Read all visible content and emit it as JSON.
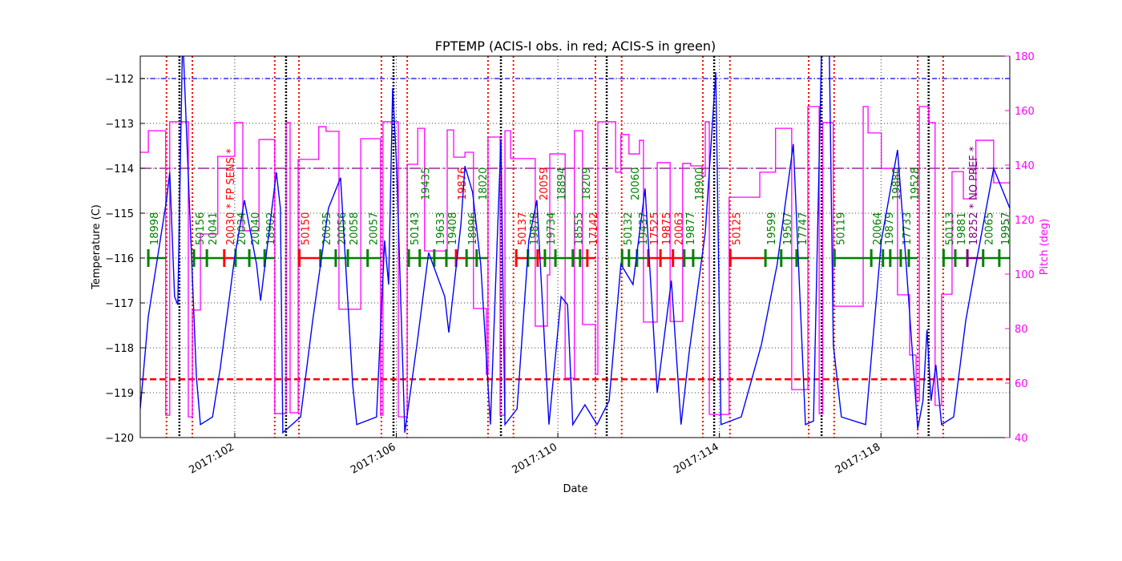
{
  "chart_data": {
    "type": "line",
    "title": "FPTEMP (ACIS-I obs. in red; ACIS-S in green)",
    "xlabel": "Date",
    "ylabel": "Temperature (C)",
    "ylabel_right": "Pitch (deg)",
    "xlim": [
      99.66,
      121.19
    ],
    "ylim": [
      -120,
      -111.5
    ],
    "ylim_right": [
      40,
      180
    ],
    "x_ticks": [
      {
        "v": 102,
        "label": "2017:102"
      },
      {
        "v": 106,
        "label": "2017:106"
      },
      {
        "v": 110,
        "label": "2017:110"
      },
      {
        "v": 114,
        "label": "2017:114"
      },
      {
        "v": 118,
        "label": "2017:118"
      }
    ],
    "y_ticks": [
      -120,
      -119,
      -118,
      -117,
      -116,
      -115,
      -114,
      -113,
      -112
    ],
    "y_ticks_right": [
      40,
      60,
      80,
      100,
      120,
      140,
      160,
      180
    ],
    "grid": true,
    "colors": {
      "temperature": "#0000ff",
      "pitch": "#ff00ff",
      "acis_i": "#ff0000",
      "acis_s": "#008000",
      "other": "#800080",
      "radzone": "#ff0000",
      "perigee": "#000000",
      "limit_blue": "#0000ff",
      "limit_purple": "#800080",
      "limit_red": "#ff0000"
    },
    "hlines": [
      {
        "value": -112.0,
        "style": "dashdot",
        "color": "#0000ff"
      },
      {
        "value": -114.0,
        "style": "dashdot-long",
        "color": "#800080"
      },
      {
        "value": -118.7,
        "style": "dashed",
        "color": "#ff0000"
      }
    ],
    "radzone_lines": [
      100.31,
      100.95,
      102.99,
      103.59,
      105.63,
      106.27,
      108.27,
      108.9,
      110.93,
      111.58,
      113.59,
      114.26,
      116.21,
      116.84,
      118.91,
      119.54
    ],
    "perigee_lines": [
      100.63,
      103.27,
      105.93,
      108.59,
      111.21,
      113.87,
      116.53,
      119.18
    ],
    "obs_bar_temp": -116.0,
    "observations": [
      {
        "id": "18998",
        "start": 99.86,
        "inst": "S"
      },
      {
        "id": "50156",
        "start": 100.99,
        "inst": "S"
      },
      {
        "id": "20041",
        "start": 101.31,
        "inst": "S"
      },
      {
        "id": "20030 * FP SENS *",
        "start": 101.74,
        "inst": "I"
      },
      {
        "id": "20034",
        "start": 102.02,
        "inst": "S"
      },
      {
        "id": "20040",
        "start": 102.36,
        "inst": "S"
      },
      {
        "id": "18902",
        "start": 102.74,
        "inst": "S"
      },
      {
        "id": "50150",
        "start": 103.6,
        "inst": "I"
      },
      {
        "id": "20035",
        "start": 104.12,
        "inst": "S"
      },
      {
        "id": "20056",
        "start": 104.5,
        "inst": "S"
      },
      {
        "id": "20058",
        "start": 104.8,
        "inst": "S"
      },
      {
        "id": "20057",
        "start": 105.29,
        "inst": "S"
      },
      {
        "id": "50143",
        "start": 106.31,
        "inst": "S"
      },
      {
        "id": "19435",
        "start": 106.58,
        "inst": "S"
      },
      {
        "id": "19633",
        "start": 106.94,
        "inst": "S"
      },
      {
        "id": "19408",
        "start": 107.24,
        "inst": "S"
      },
      {
        "id": "19876",
        "start": 107.48,
        "inst": "I"
      },
      {
        "id": "18996",
        "start": 107.74,
        "inst": "S"
      },
      {
        "id": "18020",
        "start": 107.99,
        "inst": "S"
      },
      {
        "id": "50137",
        "start": 108.97,
        "inst": "I"
      },
      {
        "id": "19878",
        "start": 109.26,
        "inst": "S"
      },
      {
        "id": "20059",
        "start": 109.5,
        "inst": "I"
      },
      {
        "id": "19734",
        "start": 109.68,
        "inst": "S"
      },
      {
        "id": "18894",
        "start": 109.94,
        "inst": "S"
      },
      {
        "id": "18555",
        "start": 110.37,
        "inst": "S"
      },
      {
        "id": "18209",
        "start": 110.55,
        "inst": "S"
      },
      {
        "id": "17142",
        "start": 110.73,
        "inst": "I"
      },
      {
        "id": "50132",
        "start": 111.59,
        "inst": "S"
      },
      {
        "id": "20060",
        "start": 111.76,
        "inst": "S"
      },
      {
        "id": "19437",
        "start": 111.96,
        "inst": "S"
      },
      {
        "id": "17525",
        "start": 112.24,
        "inst": "I"
      },
      {
        "id": "19875",
        "start": 112.54,
        "inst": "I"
      },
      {
        "id": "20063",
        "start": 112.85,
        "inst": "I"
      },
      {
        "id": "19877",
        "start": 113.13,
        "inst": "S"
      },
      {
        "id": "18900",
        "start": 113.35,
        "inst": "S"
      },
      {
        "id": "50125",
        "start": 114.27,
        "inst": "I"
      },
      {
        "id": "19599",
        "start": 115.14,
        "inst": "S"
      },
      {
        "id": "19507",
        "start": 115.53,
        "inst": "S"
      },
      {
        "id": "17747",
        "start": 115.91,
        "inst": "S"
      },
      {
        "id": "50119",
        "start": 116.85,
        "inst": "S"
      },
      {
        "id": "20064",
        "start": 117.76,
        "inst": "S"
      },
      {
        "id": "19879",
        "start": 118.05,
        "inst": "S"
      },
      {
        "id": "19880",
        "start": 118.23,
        "inst": "S"
      },
      {
        "id": "17733",
        "start": 118.49,
        "inst": "S"
      },
      {
        "id": "19528",
        "start": 118.69,
        "inst": "S"
      },
      {
        "id": "50113",
        "start": 119.55,
        "inst": "S"
      },
      {
        "id": "19881",
        "start": 119.84,
        "inst": "S"
      },
      {
        "id": "18252 * NO PREF *",
        "start": 120.14,
        "inst": "N"
      },
      {
        "id": "20065",
        "start": 120.53,
        "inst": "S"
      },
      {
        "id": "19957",
        "start": 120.93,
        "inst": "S"
      }
    ],
    "series": [
      {
        "axis": "left",
        "kind": "temperature",
        "points": [
          [
            99.66,
            -119.36
          ],
          [
            99.86,
            -117.3
          ],
          [
            100.31,
            -114.71
          ],
          [
            100.39,
            -114.09
          ],
          [
            100.51,
            -116.86
          ],
          [
            100.59,
            -117.04
          ],
          [
            100.71,
            -111.0
          ],
          [
            100.87,
            -114.63
          ],
          [
            101.05,
            -118.64
          ],
          [
            101.15,
            -119.71
          ],
          [
            101.45,
            -119.54
          ],
          [
            101.64,
            -118.46
          ],
          [
            102.0,
            -115.96
          ],
          [
            102.24,
            -114.71
          ],
          [
            102.54,
            -116.14
          ],
          [
            102.64,
            -116.95
          ],
          [
            103.03,
            -114.09
          ],
          [
            103.13,
            -114.89
          ],
          [
            103.19,
            -119.89
          ],
          [
            103.63,
            -119.54
          ],
          [
            103.93,
            -117.39
          ],
          [
            104.32,
            -114.89
          ],
          [
            104.62,
            -114.21
          ],
          [
            104.92,
            -118.82
          ],
          [
            105.02,
            -119.71
          ],
          [
            105.51,
            -119.54
          ],
          [
            105.71,
            -115.61
          ],
          [
            105.81,
            -116.59
          ],
          [
            105.91,
            -112.21
          ],
          [
            106.01,
            -114.0
          ],
          [
            106.21,
            -119.89
          ],
          [
            106.51,
            -117.93
          ],
          [
            106.8,
            -115.88
          ],
          [
            107.2,
            -116.86
          ],
          [
            107.3,
            -117.66
          ],
          [
            107.6,
            -115.25
          ],
          [
            107.7,
            -113.95
          ],
          [
            107.89,
            -114.54
          ],
          [
            108.09,
            -116.14
          ],
          [
            108.33,
            -119.71
          ],
          [
            108.59,
            -113.38
          ],
          [
            108.69,
            -119.71
          ],
          [
            108.99,
            -119.36
          ],
          [
            109.28,
            -115.61
          ],
          [
            109.48,
            -114.71
          ],
          [
            109.78,
            -119.71
          ],
          [
            110.08,
            -116.86
          ],
          [
            110.24,
            -117.04
          ],
          [
            110.37,
            -119.71
          ],
          [
            110.67,
            -119.27
          ],
          [
            110.97,
            -119.71
          ],
          [
            111.27,
            -119.18
          ],
          [
            111.56,
            -116.14
          ],
          [
            111.86,
            -116.59
          ],
          [
            112.16,
            -114.45
          ],
          [
            112.46,
            -119.0
          ],
          [
            112.81,
            -116.5
          ],
          [
            113.05,
            -119.71
          ],
          [
            113.25,
            -118.11
          ],
          [
            113.65,
            -115.43
          ],
          [
            113.91,
            -111.86
          ],
          [
            114.04,
            -119.71
          ],
          [
            114.54,
            -119.54
          ],
          [
            115.04,
            -117.93
          ],
          [
            115.43,
            -116.14
          ],
          [
            115.83,
            -113.46
          ],
          [
            116.13,
            -119.71
          ],
          [
            116.33,
            -119.63
          ],
          [
            116.53,
            -111.3
          ],
          [
            116.72,
            -111.3
          ],
          [
            116.82,
            -117.93
          ],
          [
            117.02,
            -119.54
          ],
          [
            117.62,
            -119.71
          ],
          [
            118.01,
            -115.61
          ],
          [
            118.41,
            -113.59
          ],
          [
            118.61,
            -115.96
          ],
          [
            118.91,
            -119.8
          ],
          [
            119.04,
            -119.18
          ],
          [
            119.14,
            -117.6
          ],
          [
            119.24,
            -119.18
          ],
          [
            119.36,
            -118.38
          ],
          [
            119.5,
            -119.71
          ],
          [
            119.8,
            -119.54
          ],
          [
            120.1,
            -117.39
          ],
          [
            120.35,
            -116.14
          ],
          [
            120.79,
            -114.0
          ],
          [
            121.19,
            -114.89
          ]
        ]
      },
      {
        "axis": "right",
        "kind": "pitch",
        "step": true,
        "points": [
          [
            99.66,
            144.7
          ],
          [
            99.86,
            152.6
          ],
          [
            100.29,
            48.2
          ],
          [
            100.39,
            155.9
          ],
          [
            100.85,
            47.6
          ],
          [
            100.95,
            86.8
          ],
          [
            101.15,
            114.7
          ],
          [
            101.58,
            143.2
          ],
          [
            102.0,
            155.6
          ],
          [
            102.2,
            115.9
          ],
          [
            102.6,
            149.4
          ],
          [
            102.99,
            48.8
          ],
          [
            103.27,
            155.6
          ],
          [
            103.37,
            49.1
          ],
          [
            103.57,
            142.1
          ],
          [
            104.08,
            154.1
          ],
          [
            104.26,
            152.4
          ],
          [
            104.58,
            87.1
          ],
          [
            105.12,
            149.7
          ],
          [
            105.61,
            48.2
          ],
          [
            105.67,
            155.9
          ],
          [
            106.05,
            47.6
          ],
          [
            106.27,
            140.3
          ],
          [
            106.53,
            153.5
          ],
          [
            106.7,
            108.5
          ],
          [
            107.26,
            152.9
          ],
          [
            107.42,
            142.9
          ],
          [
            107.7,
            144.7
          ],
          [
            107.91,
            87.4
          ],
          [
            108.23,
            63.2
          ],
          [
            108.27,
            150.3
          ],
          [
            108.57,
            48.2
          ],
          [
            108.69,
            152.6
          ],
          [
            108.83,
            142.4
          ],
          [
            109.44,
            80.9
          ],
          [
            109.74,
            99.7
          ],
          [
            109.8,
            144.1
          ],
          [
            110.18,
            61.8
          ],
          [
            110.41,
            152.6
          ],
          [
            110.61,
            81.5
          ],
          [
            110.93,
            63.2
          ],
          [
            110.99,
            155.9
          ],
          [
            111.43,
            137.4
          ],
          [
            111.56,
            151.2
          ],
          [
            111.76,
            144.1
          ],
          [
            112.02,
            149.1
          ],
          [
            112.12,
            82.4
          ],
          [
            112.46,
            140.9
          ],
          [
            112.78,
            82.6
          ],
          [
            113.09,
            140.6
          ],
          [
            113.29,
            139.7
          ],
          [
            113.57,
            135.9
          ],
          [
            113.65,
            155.9
          ],
          [
            113.75,
            48.5
          ],
          [
            113.97,
            48.5
          ],
          [
            114.24,
            128.2
          ],
          [
            115.0,
            137.4
          ],
          [
            115.39,
            153.5
          ],
          [
            115.79,
            57.6
          ],
          [
            116.19,
            161.5
          ],
          [
            116.47,
            48.8
          ],
          [
            116.56,
            155.6
          ],
          [
            116.82,
            88.2
          ],
          [
            117.56,
            161.5
          ],
          [
            117.68,
            151.8
          ],
          [
            118.01,
            138.8
          ],
          [
            118.41,
            92.4
          ],
          [
            118.71,
            70.3
          ],
          [
            118.87,
            53.5
          ],
          [
            118.95,
            161.5
          ],
          [
            119.18,
            155.6
          ],
          [
            119.34,
            51.8
          ],
          [
            119.5,
            92.6
          ],
          [
            119.76,
            137.6
          ],
          [
            120.04,
            127.6
          ],
          [
            120.35,
            149.1
          ],
          [
            120.79,
            133.5
          ],
          [
            121.19,
            133.5
          ]
        ]
      }
    ]
  }
}
